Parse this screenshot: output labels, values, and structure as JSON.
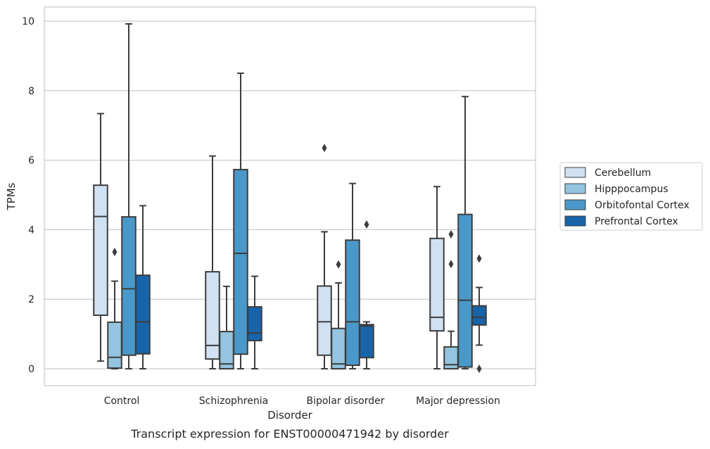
{
  "chart_data": {
    "type": "boxplot",
    "title": "",
    "xlabel": "Disorder",
    "ylabel": "TPMs",
    "caption": "Transcript expression for ENST00000471942 by disorder",
    "categories": [
      "Control",
      "Schizophrenia",
      "Bipolar disorder",
      "Major depression"
    ],
    "ylim": [
      -0.5,
      10.4
    ],
    "yticks": [
      0,
      2,
      4,
      6,
      8,
      10
    ],
    "grid": "horizontal",
    "legend_position": "right",
    "series": [
      {
        "name": "Cerebellum",
        "color": "#d0e1f2",
        "boxes": [
          {
            "whisker_low": 0.22,
            "q1": 1.54,
            "median": 4.38,
            "q3": 5.28,
            "whisker_high": 7.34,
            "outliers": []
          },
          {
            "whisker_low": 0.0,
            "q1": 0.28,
            "median": 0.67,
            "q3": 2.79,
            "whisker_high": 6.12,
            "outliers": []
          },
          {
            "whisker_low": 0.0,
            "q1": 0.39,
            "median": 1.35,
            "q3": 2.38,
            "whisker_high": 3.94,
            "outliers": [
              6.35
            ]
          },
          {
            "whisker_low": 0.0,
            "q1": 1.09,
            "median": 1.48,
            "q3": 3.75,
            "whisker_high": 5.24,
            "outliers": []
          }
        ]
      },
      {
        "name": "Hipppocampus",
        "color": "#94c4df",
        "boxes": [
          {
            "whisker_low": 0.0,
            "q1": 0.02,
            "median": 0.33,
            "q3": 1.34,
            "whisker_high": 2.52,
            "outliers": [
              3.36
            ]
          },
          {
            "whisker_low": 0.0,
            "q1": 0.0,
            "median": 0.14,
            "q3": 1.07,
            "whisker_high": 2.37,
            "outliers": []
          },
          {
            "whisker_low": 0.0,
            "q1": 0.0,
            "median": 0.14,
            "q3": 1.16,
            "whisker_high": 2.47,
            "outliers": [
              3.0
            ]
          },
          {
            "whisker_low": 0.0,
            "q1": 0.0,
            "median": 0.12,
            "q3": 0.63,
            "whisker_high": 1.08,
            "outliers": [
              3.01,
              3.87
            ]
          }
        ]
      },
      {
        "name": "Orbitofontal Cortex",
        "color": "#4a98c9",
        "boxes": [
          {
            "whisker_low": 0.0,
            "q1": 0.39,
            "median": 2.3,
            "q3": 4.37,
            "whisker_high": 9.92,
            "outliers": []
          },
          {
            "whisker_low": 0.0,
            "q1": 0.42,
            "median": 3.32,
            "q3": 5.73,
            "whisker_high": 8.5,
            "outliers": []
          },
          {
            "whisker_low": 0.0,
            "q1": 0.1,
            "median": 1.35,
            "q3": 3.7,
            "whisker_high": 5.33,
            "outliers": []
          },
          {
            "whisker_low": 0.0,
            "q1": 0.05,
            "median": 1.97,
            "q3": 4.44,
            "whisker_high": 7.83,
            "outliers": []
          }
        ]
      },
      {
        "name": "Prefrontal Cortex",
        "color": "#1764ab",
        "boxes": [
          {
            "whisker_low": 0.0,
            "q1": 0.43,
            "median": 1.35,
            "q3": 2.69,
            "whisker_high": 4.69,
            "outliers": []
          },
          {
            "whisker_low": 0.0,
            "q1": 0.81,
            "median": 1.03,
            "q3": 1.78,
            "whisker_high": 2.66,
            "outliers": []
          },
          {
            "whisker_low": 0.0,
            "q1": 0.32,
            "median": 1.23,
            "q3": 1.27,
            "whisker_high": 1.35,
            "outliers": [
              4.15
            ]
          },
          {
            "whisker_low": 0.68,
            "q1": 1.26,
            "median": 1.48,
            "q3": 1.81,
            "whisker_high": 2.34,
            "outliers": [
              0.0,
              3.17
            ]
          }
        ]
      }
    ]
  }
}
